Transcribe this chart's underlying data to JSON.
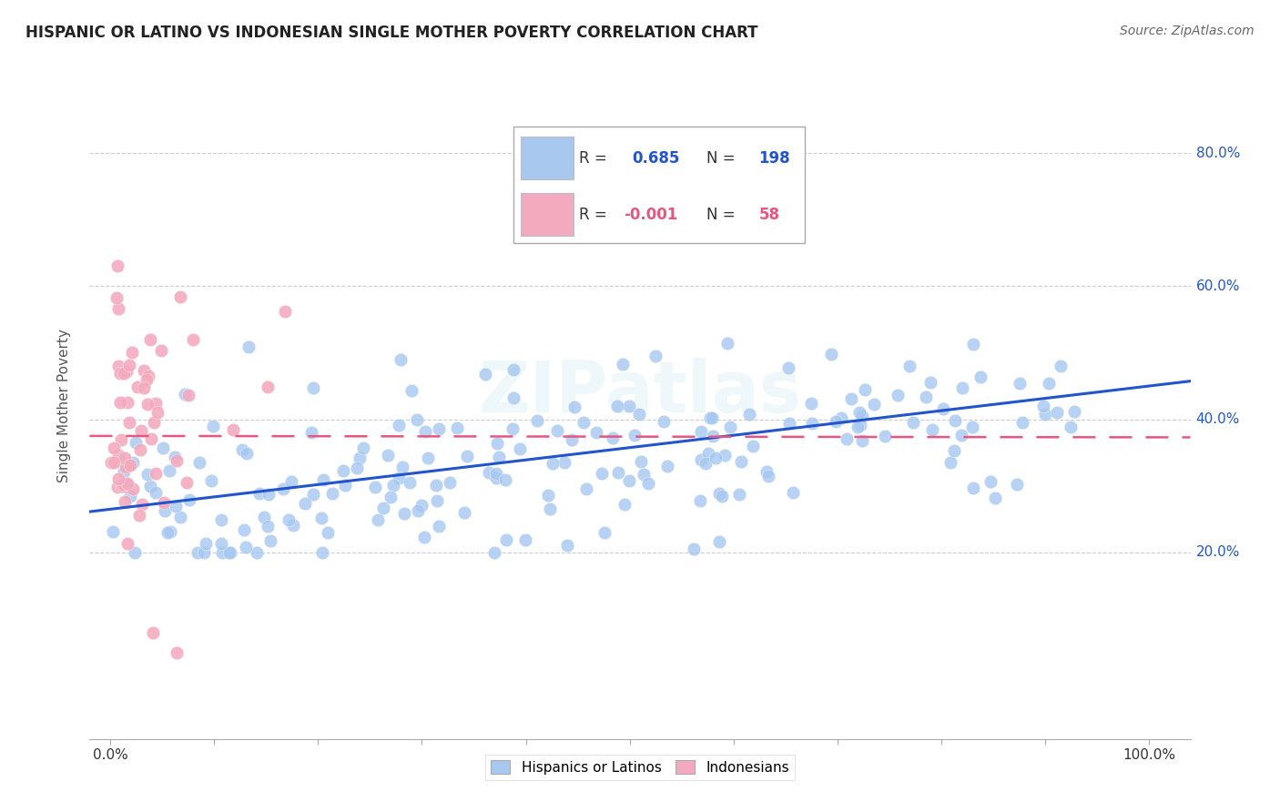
{
  "title": "HISPANIC OR LATINO VS INDONESIAN SINGLE MOTHER POVERTY CORRELATION CHART",
  "source": "Source: ZipAtlas.com",
  "ylabel": "Single Mother Poverty",
  "blue_color": "#A8C8F0",
  "pink_color": "#F4AABE",
  "blue_line_color": "#2255CC",
  "pink_line_color": "#E85580",
  "grid_color": "#CCCCCC",
  "watermark": "ZIPatlas",
  "blue_intercept": 0.265,
  "blue_slope": 0.185,
  "pink_intercept": 0.375,
  "pink_slope": -0.002,
  "bg_color": "#FFFFFF",
  "legend_bottom_blue": "Hispanics or Latinos",
  "legend_bottom_pink": "Indonesians",
  "legend_blue_R": "0.685",
  "legend_blue_N": "198",
  "legend_pink_R": "-0.001",
  "legend_pink_N": "58",
  "ytick_vals": [
    0.2,
    0.4,
    0.6,
    0.8
  ],
  "ytick_labels": [
    "20.0%",
    "40.0%",
    "60.0%",
    "80.0%"
  ],
  "ylim_low": -0.08,
  "ylim_high": 0.92,
  "xlim_low": -0.02,
  "xlim_high": 1.04
}
